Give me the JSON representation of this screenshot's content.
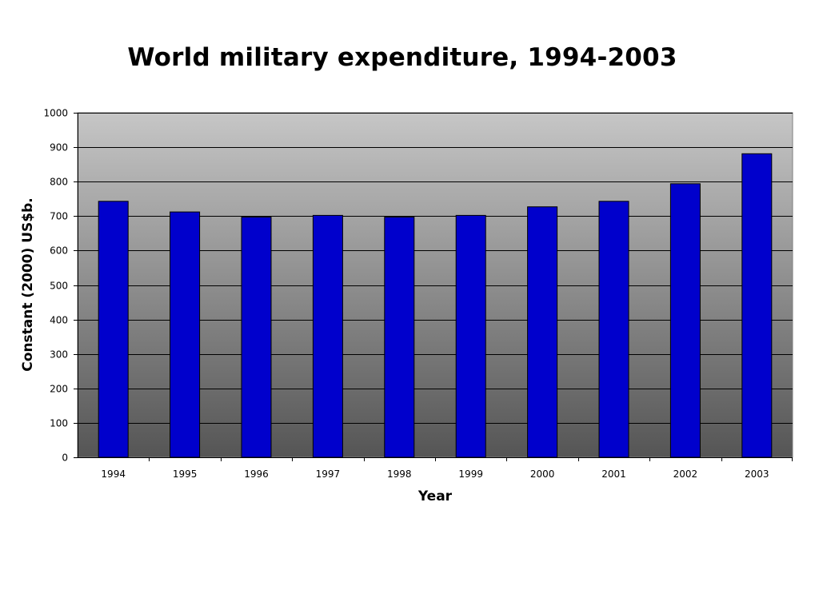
{
  "chart_data": {
    "type": "bar",
    "title": "World military expenditure, 1994-2003",
    "xlabel": "Year",
    "ylabel": "Constant (2000) US$b.",
    "categories": [
      "1994",
      "1995",
      "1996",
      "1997",
      "1998",
      "1999",
      "2000",
      "2001",
      "2002",
      "2003"
    ],
    "values": [
      743,
      712,
      697,
      702,
      697,
      702,
      727,
      743,
      794,
      881
    ],
    "ylim": [
      0,
      1000
    ],
    "yticks": [
      "0",
      "100",
      "200",
      "300",
      "400",
      "500",
      "600",
      "700",
      "800",
      "900",
      "1000"
    ],
    "grid": true,
    "bar_color": "#0000CC",
    "plot_background": "gradient #c4c4c4 to #555555"
  }
}
